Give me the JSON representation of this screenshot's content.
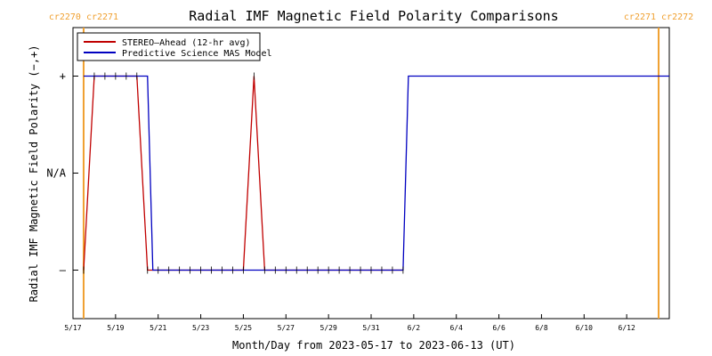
{
  "chart_data": {
    "type": "line",
    "title": "Radial IMF Magnetic Field Polarity Comparisons",
    "xlabel": "Month/Day from 2023-05-17 to 2023-06-13 (UT)",
    "ylabel": "Radial IMF Magnetic Field Polarity (−,+)",
    "x_start": "2023-05-17",
    "x_end": "2023-06-13",
    "xlim": [
      0,
      28
    ],
    "ylim": [
      -1.5,
      1.5
    ],
    "x_ticks": [
      {
        "x": 0,
        "label": "5/17"
      },
      {
        "x": 2,
        "label": "5/19"
      },
      {
        "x": 4,
        "label": "5/21"
      },
      {
        "x": 6,
        "label": "5/23"
      },
      {
        "x": 8,
        "label": "5/25"
      },
      {
        "x": 10,
        "label": "5/27"
      },
      {
        "x": 12,
        "label": "5/29"
      },
      {
        "x": 14,
        "label": "5/31"
      },
      {
        "x": 16,
        "label": "6/2"
      },
      {
        "x": 18,
        "label": "6/4"
      },
      {
        "x": 20,
        "label": "6/6"
      },
      {
        "x": 22,
        "label": "6/8"
      },
      {
        "x": 24,
        "label": "6/10"
      },
      {
        "x": 26,
        "label": "6/12"
      }
    ],
    "y_ticks": [
      {
        "y": 1,
        "label": "+"
      },
      {
        "y": 0,
        "label": "N/A"
      },
      {
        "y": -1,
        "label": "–"
      }
    ],
    "legend": {
      "placement": "top-left"
    },
    "carrington_markers": [
      {
        "x": 0.5,
        "label_left": "cr2270",
        "label_right": "cr2271",
        "color": "#f0a030"
      },
      {
        "x": 27.5,
        "label_left": "cr2271",
        "label_right": "cr2272",
        "color": "#f0a030"
      }
    ],
    "series": [
      {
        "name": "STEREO–Ahead (12-hr avg)",
        "color": "#c00000",
        "x": [
          0.5,
          1.0,
          1.5,
          2.0,
          2.5,
          3.0,
          3.5,
          4.0,
          4.5,
          5.0,
          5.5,
          6.0,
          6.5,
          7.0,
          7.5,
          8.0,
          8.5,
          9.0,
          9.5,
          10.0,
          10.5,
          11.0,
          11.5,
          12.0,
          12.5,
          13.0,
          13.5,
          14.0,
          14.5,
          15.0,
          15.5
        ],
        "y": [
          -1,
          1,
          1,
          1,
          1,
          1,
          -1,
          -1,
          -1,
          -1,
          -1,
          -1,
          -1,
          -1,
          -1,
          -1,
          1,
          -1,
          -1,
          -1,
          -1,
          -1,
          -1,
          -1,
          -1,
          -1,
          -1,
          -1,
          -1,
          -1,
          -1
        ]
      },
      {
        "name": "Predictive Science MAS Model",
        "color": "#0000c0",
        "x": [
          0.5,
          3.5,
          3.75,
          15.5,
          15.75,
          28
        ],
        "y": [
          1,
          1,
          -1,
          -1,
          1,
          1
        ]
      }
    ]
  }
}
